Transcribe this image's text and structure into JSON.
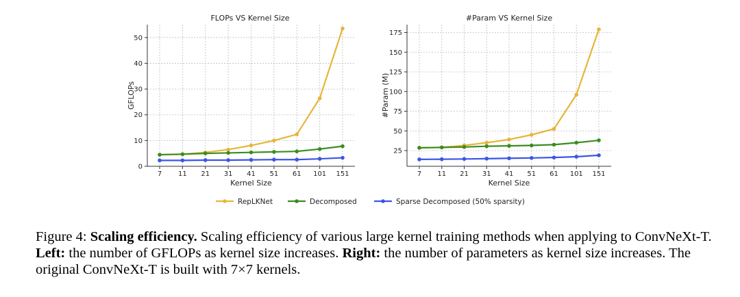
{
  "chart_data": [
    {
      "type": "line",
      "title": "FLOPs VS Kernel Size",
      "xlabel": "Kernel Size",
      "ylabel": "GFLOPs",
      "categories": [
        "7",
        "11",
        "21",
        "31",
        "41",
        "51",
        "61",
        "101",
        "151"
      ],
      "ylim": [
        0,
        55
      ],
      "yticks": [
        0,
        10,
        20,
        30,
        40,
        50
      ],
      "grid": true,
      "series": [
        {
          "name": "RepLKNet",
          "color": "#e6b53a",
          "values": [
            4.5,
            4.7,
            5.4,
            6.5,
            8.1,
            10.0,
            12.4,
            26.4,
            53.5
          ]
        },
        {
          "name": "Decomposed",
          "color": "#3a8c1f",
          "values": [
            4.5,
            4.7,
            5.0,
            5.2,
            5.4,
            5.6,
            5.8,
            6.7,
            7.8
          ]
        },
        {
          "name": "Sparse Decomposed (50% sparsity)",
          "color": "#3b55e6",
          "values": [
            2.3,
            2.3,
            2.4,
            2.4,
            2.5,
            2.6,
            2.6,
            2.9,
            3.3
          ]
        }
      ]
    },
    {
      "type": "line",
      "title": "#Param VS Kernel Size",
      "xlabel": "Kernel Size",
      "ylabel": "#Param (M)",
      "categories": [
        "7",
        "11",
        "21",
        "31",
        "41",
        "51",
        "61",
        "101",
        "151"
      ],
      "ylim": [
        5,
        185
      ],
      "yticks": [
        25,
        50,
        75,
        100,
        125,
        150,
        175
      ],
      "grid": true,
      "series": [
        {
          "name": "RepLKNet",
          "color": "#e6b53a",
          "values": [
            28.5,
            29,
            31.5,
            35,
            39,
            45,
            52.5,
            96,
            179
          ]
        },
        {
          "name": "Decomposed",
          "color": "#3a8c1f",
          "values": [
            28.5,
            29,
            29.5,
            30.5,
            31,
            31.5,
            32.5,
            35,
            38
          ]
        },
        {
          "name": "Sparse Decomposed (50% sparsity)",
          "color": "#3b55e6",
          "values": [
            13.8,
            14,
            14.3,
            14.7,
            15.2,
            15.6,
            16.2,
            17.2,
            19
          ]
        }
      ]
    }
  ],
  "legend": {
    "position": "bottom-center",
    "entries": [
      "RepLKNet",
      "Decomposed",
      "Sparse Decomposed (50% sparsity)"
    ]
  },
  "caption": {
    "label": "Figure 4:",
    "bold_title": "Scaling efficiency.",
    "text1": "Scaling efficiency of various large kernel training methods when applying to ConvNeXt-T.",
    "left_label": "Left:",
    "text2": "the number of GFLOPs as kernel size increases.",
    "right_label": "Right:",
    "text3": "the number of parameters as kernel size increases. The original ConvNeXt-T is built with 7×7 kernels."
  }
}
